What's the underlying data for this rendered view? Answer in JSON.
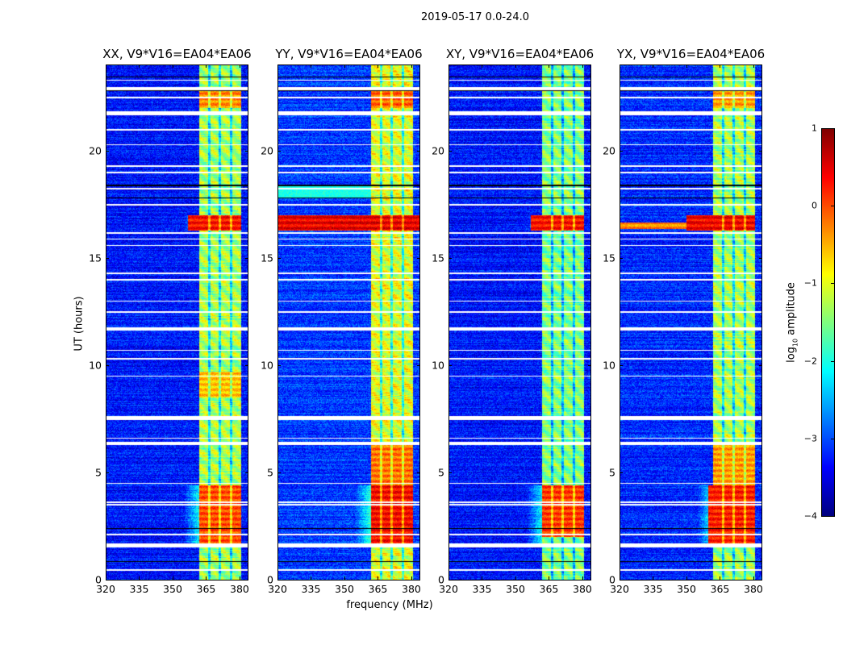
{
  "chart_data": {
    "type": "heatmap",
    "title": "2019-05-17 0.0-24.0",
    "xlabel": "frequency (MHz)",
    "ylabel": "UT (hours)",
    "xlim": [
      320,
      384
    ],
    "ylim": [
      0,
      24
    ],
    "xticks": [
      320,
      335,
      350,
      365,
      380
    ],
    "yticks": [
      0,
      5,
      10,
      15,
      20
    ],
    "colorbar": {
      "label": "log10 amplitude",
      "label_main": "log",
      "label_sub": "10",
      "label_rest": " amplitude",
      "range": [
        -4,
        1
      ],
      "ticks": [
        1,
        0,
        -1,
        -2,
        -3,
        -4
      ],
      "tick_labels": [
        "1",
        "0",
        "−1",
        "−2",
        "−3",
        "−4"
      ],
      "colormap": "jet"
    },
    "band_freq": [
      362,
      381
    ],
    "band_gaps_mhz": [
      366.5,
      371.5,
      376.5
    ],
    "flagged_hours": [
      [
        1.5,
        1.68
      ],
      [
        7.45,
        7.65
      ],
      [
        11.62,
        11.78
      ],
      [
        21.65,
        21.85
      ],
      [
        22.85,
        22.98
      ],
      [
        6.3,
        6.42
      ],
      [
        16.12,
        16.2
      ],
      [
        18.2,
        18.3
      ]
    ],
    "flag_lines_hours": [
      0.45,
      2.1,
      3.5,
      3.62,
      4.5,
      6.6,
      9.5,
      10.3,
      10.7,
      12.5,
      13.0,
      14.0,
      14.3,
      15.6,
      15.9,
      17.5,
      19.0,
      19.3,
      20.3,
      21.0,
      22.5,
      23.3
    ],
    "dark_lines_hours": [
      0.85,
      2.4,
      11.72,
      16.2,
      17.8,
      18.4,
      22.83,
      23.45
    ],
    "panels": [
      {
        "title": "XX, V9*V16=EA04*EA06",
        "background": -3.3,
        "band_level": -1.3,
        "events": [
          {
            "t": [
              16.3,
              17.0
            ],
            "f": [
              357,
              381
            ],
            "level": 0.3
          },
          {
            "t": [
              1.7,
              4.4
            ],
            "f": [
              362,
              381
            ],
            "level": 0.0
          },
          {
            "t": [
              22.0,
              23.0
            ],
            "f": [
              362,
              381
            ],
            "level": -0.3
          },
          {
            "t": [
              8.5,
              9.7
            ],
            "f": [
              362,
              381
            ],
            "level": -0.6
          }
        ]
      },
      {
        "title": "YY, V9*V16=EA04*EA06",
        "background": -3.1,
        "band_level": -1.0,
        "events": [
          {
            "t": [
              16.3,
              17.0
            ],
            "f": [
              320,
              384
            ],
            "level": 0.45
          },
          {
            "t": [
              1.7,
              4.4
            ],
            "f": [
              362,
              381
            ],
            "level": 0.35
          },
          {
            "t": [
              4.4,
              6.3
            ],
            "f": [
              362,
              381
            ],
            "level": -0.2
          },
          {
            "t": [
              22.0,
              23.0
            ],
            "f": [
              362,
              381
            ],
            "level": -0.1
          },
          {
            "t": [
              17.8,
              18.4
            ],
            "f": [
              320,
              362
            ],
            "level": -2.0
          }
        ]
      },
      {
        "title": "XY, V9*V16=EA04*EA06",
        "background": -3.3,
        "band_level": -1.5,
        "events": [
          {
            "t": [
              16.3,
              17.0
            ],
            "f": [
              357,
              381
            ],
            "level": 0.3
          },
          {
            "t": [
              2.0,
              4.4
            ],
            "f": [
              362,
              381
            ],
            "level": 0.1
          }
        ]
      },
      {
        "title": "YX, V9*V16=EA04*EA06",
        "background": -3.2,
        "band_level": -1.3,
        "events": [
          {
            "t": [
              16.3,
              17.0
            ],
            "f": [
              350,
              381
            ],
            "level": 0.4
          },
          {
            "t": [
              16.35,
              16.65
            ],
            "f": [
              320,
              350
            ],
            "level": -0.3
          },
          {
            "t": [
              1.7,
              4.4
            ],
            "f": [
              360,
              381
            ],
            "level": 0.25
          },
          {
            "t": [
              4.4,
              6.3
            ],
            "f": [
              362,
              381
            ],
            "level": -0.4
          },
          {
            "t": [
              22.0,
              23.0
            ],
            "f": [
              362,
              381
            ],
            "level": -0.4
          }
        ]
      }
    ]
  }
}
